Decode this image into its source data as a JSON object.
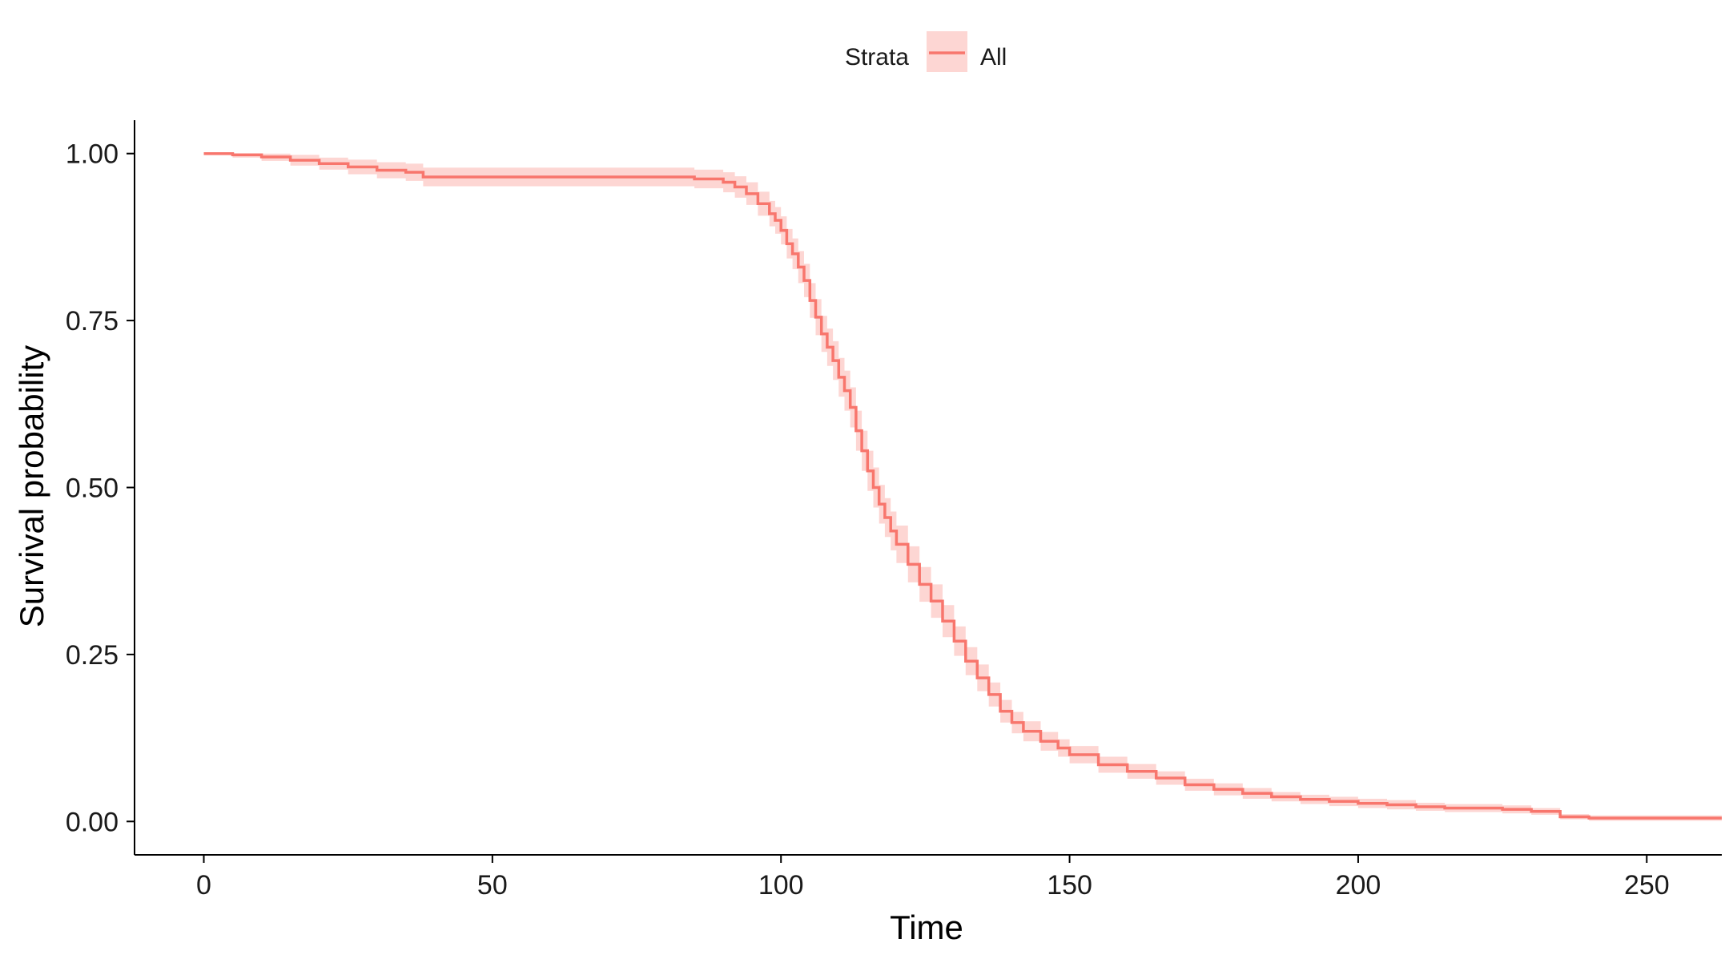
{
  "chart_data": {
    "type": "line",
    "subtype": "kaplan-meier survival curve with confidence band",
    "title": "",
    "xlabel": "Time",
    "ylabel": "Survival probability",
    "xlim": [
      -12,
      263
    ],
    "ylim": [
      -0.05,
      1.05
    ],
    "x_ticks": [
      0,
      50,
      100,
      150,
      200,
      250
    ],
    "x_tick_labels": [
      "0",
      "50",
      "100",
      "150",
      "200",
      "250"
    ],
    "y_ticks": [
      0,
      0.25,
      0.5,
      0.75,
      1.0
    ],
    "y_tick_labels": [
      "0.00",
      "0.25",
      "0.50",
      "0.75",
      "1.00"
    ],
    "grid": false,
    "legend": {
      "title": "Strata",
      "position": "top",
      "entries": [
        "All"
      ]
    },
    "colors": {
      "line": "#F8766D",
      "band": "#F8766D"
    },
    "series": [
      {
        "name": "All",
        "x": [
          0,
          5,
          10,
          15,
          20,
          25,
          30,
          35,
          38,
          40,
          45,
          50,
          60,
          70,
          80,
          85,
          90,
          92,
          94,
          96,
          98,
          99,
          100,
          101,
          102,
          103,
          104,
          105,
          106,
          107,
          108,
          109,
          110,
          111,
          112,
          113,
          114,
          115,
          116,
          117,
          118,
          119,
          120,
          122,
          124,
          126,
          128,
          130,
          132,
          134,
          136,
          138,
          140,
          142,
          145,
          148,
          150,
          155,
          160,
          165,
          170,
          175,
          180,
          185,
          190,
          195,
          200,
          205,
          210,
          215,
          220,
          225,
          230,
          235,
          240,
          245,
          250,
          255,
          263
        ],
        "y": [
          1.0,
          0.998,
          0.995,
          0.99,
          0.985,
          0.98,
          0.975,
          0.972,
          0.965,
          0.965,
          0.965,
          0.965,
          0.965,
          0.965,
          0.965,
          0.962,
          0.957,
          0.95,
          0.94,
          0.925,
          0.91,
          0.9,
          0.885,
          0.865,
          0.85,
          0.83,
          0.81,
          0.78,
          0.755,
          0.73,
          0.71,
          0.69,
          0.665,
          0.645,
          0.62,
          0.585,
          0.555,
          0.525,
          0.5,
          0.475,
          0.455,
          0.435,
          0.415,
          0.385,
          0.355,
          0.33,
          0.3,
          0.27,
          0.24,
          0.215,
          0.19,
          0.165,
          0.148,
          0.135,
          0.12,
          0.11,
          0.1,
          0.085,
          0.075,
          0.065,
          0.055,
          0.048,
          0.042,
          0.037,
          0.033,
          0.03,
          0.027,
          0.025,
          0.022,
          0.02,
          0.02,
          0.018,
          0.015,
          0.007,
          0.005,
          0.005,
          0.005,
          0.005,
          0.005
        ],
        "lower": [
          1.0,
          0.994,
          0.989,
          0.982,
          0.976,
          0.969,
          0.963,
          0.959,
          0.951,
          0.951,
          0.951,
          0.951,
          0.951,
          0.951,
          0.951,
          0.948,
          0.942,
          0.934,
          0.923,
          0.907,
          0.891,
          0.88,
          0.864,
          0.843,
          0.827,
          0.806,
          0.785,
          0.754,
          0.728,
          0.703,
          0.682,
          0.661,
          0.636,
          0.615,
          0.59,
          0.555,
          0.525,
          0.495,
          0.47,
          0.446,
          0.426,
          0.406,
          0.387,
          0.358,
          0.329,
          0.305,
          0.276,
          0.248,
          0.219,
          0.195,
          0.172,
          0.148,
          0.132,
          0.12,
          0.106,
          0.097,
          0.087,
          0.073,
          0.064,
          0.055,
          0.046,
          0.039,
          0.034,
          0.03,
          0.026,
          0.023,
          0.02,
          0.018,
          0.016,
          0.014,
          0.014,
          0.012,
          0.01,
          0.003,
          0.001,
          0.001,
          0.001,
          0.001,
          0.001
        ],
        "upper": [
          1.0,
          1.0,
          1.0,
          0.998,
          0.994,
          0.991,
          0.987,
          0.985,
          0.979,
          0.979,
          0.979,
          0.979,
          0.979,
          0.979,
          0.979,
          0.976,
          0.972,
          0.966,
          0.957,
          0.943,
          0.929,
          0.92,
          0.906,
          0.887,
          0.873,
          0.854,
          0.835,
          0.806,
          0.782,
          0.757,
          0.738,
          0.719,
          0.694,
          0.675,
          0.65,
          0.615,
          0.585,
          0.555,
          0.53,
          0.504,
          0.484,
          0.464,
          0.443,
          0.412,
          0.381,
          0.355,
          0.324,
          0.292,
          0.261,
          0.235,
          0.208,
          0.182,
          0.164,
          0.15,
          0.134,
          0.123,
          0.113,
          0.097,
          0.086,
          0.075,
          0.064,
          0.057,
          0.05,
          0.044,
          0.04,
          0.037,
          0.034,
          0.032,
          0.028,
          0.026,
          0.026,
          0.024,
          0.02,
          0.011,
          0.009,
          0.009,
          0.009,
          0.009,
          0.009
        ]
      }
    ]
  }
}
